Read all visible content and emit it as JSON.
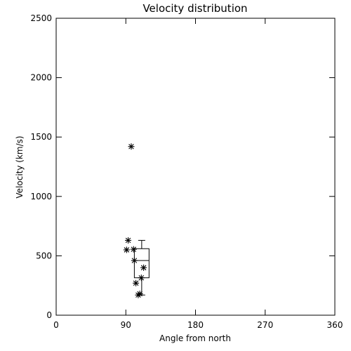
{
  "chart_data": {
    "type": "scatter",
    "title": "Velocity distribution",
    "xlabel": "Angle from north",
    "ylabel": "Velocity (km/s)",
    "xlim": [
      0,
      360
    ],
    "ylim": [
      0,
      2500
    ],
    "xticks": [
      0,
      90,
      180,
      270,
      360
    ],
    "yticks": [
      0,
      500,
      1000,
      1500,
      2000,
      2500
    ],
    "grid": false,
    "marker": "asterisk",
    "points": [
      {
        "x": 97,
        "y": 1420
      },
      {
        "x": 93,
        "y": 630
      },
      {
        "x": 91,
        "y": 550
      },
      {
        "x": 100,
        "y": 555
      },
      {
        "x": 101,
        "y": 460
      },
      {
        "x": 113,
        "y": 400
      },
      {
        "x": 110,
        "y": 315
      },
      {
        "x": 103,
        "y": 270
      },
      {
        "x": 108,
        "y": 180
      },
      {
        "x": 106,
        "y": 170
      }
    ],
    "boxplot": {
      "x_min": 101,
      "x_max": 120,
      "whisker_low": 170,
      "q1": 315,
      "median": 460,
      "q3": 560,
      "whisker_high": 630
    }
  }
}
